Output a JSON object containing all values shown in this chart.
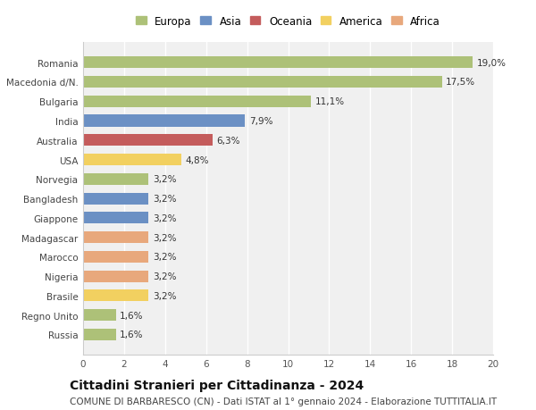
{
  "categories": [
    "Russia",
    "Regno Unito",
    "Brasile",
    "Nigeria",
    "Marocco",
    "Madagascar",
    "Giappone",
    "Bangladesh",
    "Norvegia",
    "USA",
    "Australia",
    "India",
    "Bulgaria",
    "Macedonia d/N.",
    "Romania"
  ],
  "values": [
    1.6,
    1.6,
    3.2,
    3.2,
    3.2,
    3.2,
    3.2,
    3.2,
    3.2,
    4.8,
    6.3,
    7.9,
    11.1,
    17.5,
    19.0
  ],
  "labels": [
    "1,6%",
    "1,6%",
    "3,2%",
    "3,2%",
    "3,2%",
    "3,2%",
    "3,2%",
    "3,2%",
    "3,2%",
    "4,8%",
    "6,3%",
    "7,9%",
    "11,1%",
    "17,5%",
    "19,0%"
  ],
  "continents": [
    "Europa",
    "Europa",
    "America",
    "Africa",
    "Africa",
    "Africa",
    "Asia",
    "Asia",
    "Europa",
    "America",
    "Oceania",
    "Asia",
    "Europa",
    "Europa",
    "Europa"
  ],
  "continent_colors": {
    "Europa": "#adc178",
    "Asia": "#6b90c4",
    "Oceania": "#c45c5c",
    "America": "#f2d060",
    "Africa": "#e8a87c"
  },
  "legend_order": [
    "Europa",
    "Asia",
    "Oceania",
    "America",
    "Africa"
  ],
  "xlim": [
    0,
    20
  ],
  "xticks": [
    0,
    2,
    4,
    6,
    8,
    10,
    12,
    14,
    16,
    18,
    20
  ],
  "title": "Cittadini Stranieri per Cittadinanza - 2024",
  "subtitle": "COMUNE DI BARBARESCO (CN) - Dati ISTAT al 1° gennaio 2024 - Elaborazione TUTTITALIA.IT",
  "background_color": "#ffffff",
  "plot_bg_color": "#f0f0f0",
  "grid_color": "#ffffff",
  "bar_height": 0.6,
  "title_fontsize": 10,
  "subtitle_fontsize": 7.5,
  "label_fontsize": 7.5,
  "tick_fontsize": 7.5,
  "legend_fontsize": 8.5
}
